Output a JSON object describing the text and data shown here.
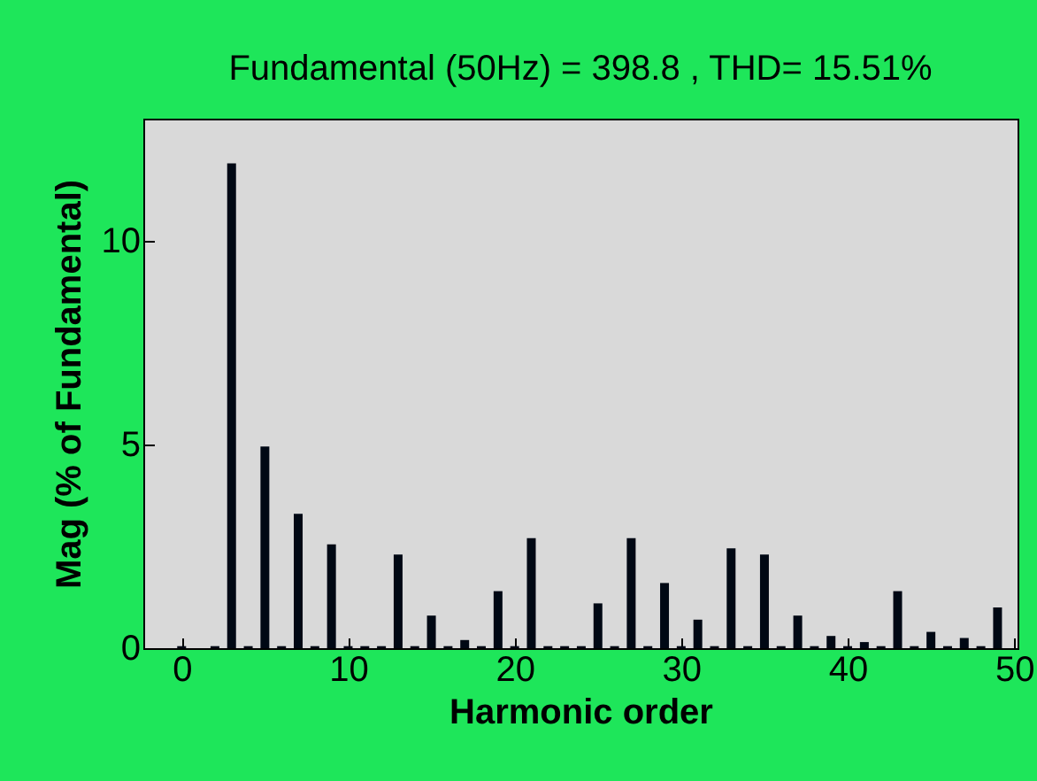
{
  "chart_data": {
    "type": "bar",
    "title": "Fundamental (50Hz) = 398.8 , THD= 15.51%",
    "xlabel": "Harmonic order",
    "ylabel": "Mag (% of Fundamental)",
    "x": [
      0,
      1,
      2,
      3,
      4,
      5,
      6,
      7,
      8,
      9,
      10,
      11,
      12,
      13,
      14,
      15,
      16,
      17,
      18,
      19,
      20,
      21,
      22,
      23,
      24,
      25,
      26,
      27,
      28,
      29,
      30,
      31,
      32,
      33,
      34,
      35,
      36,
      37,
      38,
      39,
      40,
      41,
      42,
      43,
      44,
      45,
      46,
      47,
      48,
      49
    ],
    "values": [
      0.05,
      null,
      0.05,
      11.9,
      0.05,
      4.95,
      0.05,
      3.3,
      0.05,
      2.55,
      0.05,
      0.05,
      0.05,
      2.3,
      0.05,
      0.8,
      0.05,
      0.2,
      0.05,
      1.4,
      0.05,
      2.7,
      0.05,
      0.05,
      0.05,
      1.1,
      0.05,
      2.7,
      0.05,
      1.6,
      0.05,
      0.7,
      0.05,
      2.45,
      0.05,
      2.3,
      0.05,
      0.8,
      0.05,
      0.3,
      0.05,
      0.15,
      0.05,
      1.4,
      0.05,
      0.4,
      0.05,
      0.25,
      0.05,
      1.0
    ],
    "color": "#000814",
    "xlim": [
      -2.3,
      50.2
    ],
    "xticks": [
      0,
      10,
      20,
      30,
      40,
      50
    ],
    "ylim": [
      0,
      13
    ],
    "yticks": [
      0,
      5,
      10
    ],
    "grid": false
  }
}
